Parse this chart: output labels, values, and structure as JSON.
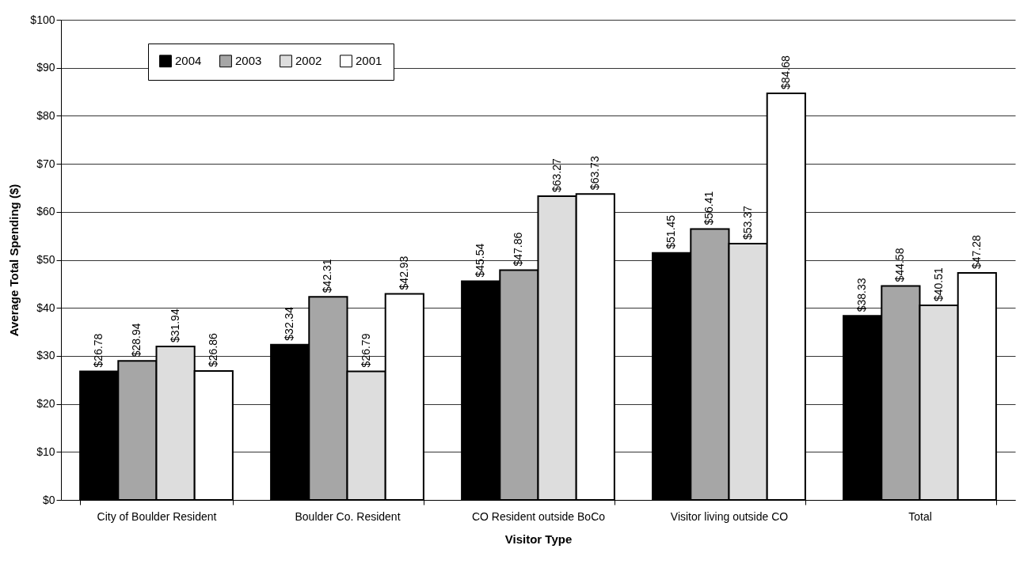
{
  "chart_data": {
    "type": "bar",
    "xlabel": "Visitor Type",
    "ylabel": "Average Total Spending ($)",
    "categories": [
      "City of Boulder Resident",
      "Boulder Co. Resident",
      "CO Resident outside BoCo",
      "Visitor living outside CO",
      "Total"
    ],
    "series": [
      {
        "name": "2004",
        "color": "#000000",
        "values": [
          26.78,
          32.34,
          45.54,
          51.45,
          38.33
        ],
        "value_labels": [
          "$26.78",
          "$32.34",
          "$45.54",
          "$51.45",
          "$38.33"
        ]
      },
      {
        "name": "2003",
        "color": "#a6a6a6",
        "values": [
          28.94,
          42.31,
          47.86,
          56.41,
          44.58
        ],
        "value_labels": [
          "$28.94",
          "$42.31",
          "$47.86",
          "$56.41",
          "$44.58"
        ]
      },
      {
        "name": "2002",
        "color": "#dddddd",
        "values": [
          31.94,
          26.79,
          63.27,
          53.37,
          40.51
        ],
        "value_labels": [
          "$31.94",
          "$26.79",
          "$63.27",
          "$53.37",
          "$40.51"
        ]
      },
      {
        "name": "2001",
        "color": "#ffffff",
        "values": [
          26.86,
          42.93,
          63.73,
          84.68,
          47.28
        ],
        "value_labels": [
          "$26.86",
          "$42.93",
          "$63.73",
          "$84.68",
          "$47.28"
        ]
      }
    ],
    "ylim": [
      0,
      100
    ],
    "yticks": [
      {
        "value": 0,
        "label": "$0"
      },
      {
        "value": 10,
        "label": "$10"
      },
      {
        "value": 20,
        "label": "$20"
      },
      {
        "value": 30,
        "label": "$30"
      },
      {
        "value": 40,
        "label": "$40"
      },
      {
        "value": 50,
        "label": "$50"
      },
      {
        "value": 60,
        "label": "$60"
      },
      {
        "value": 70,
        "label": "$70"
      },
      {
        "value": 80,
        "label": "$80"
      },
      {
        "value": 90,
        "label": "$90"
      },
      {
        "value": 100,
        "label": "$100"
      }
    ],
    "grid": "y",
    "legend": "top left"
  }
}
